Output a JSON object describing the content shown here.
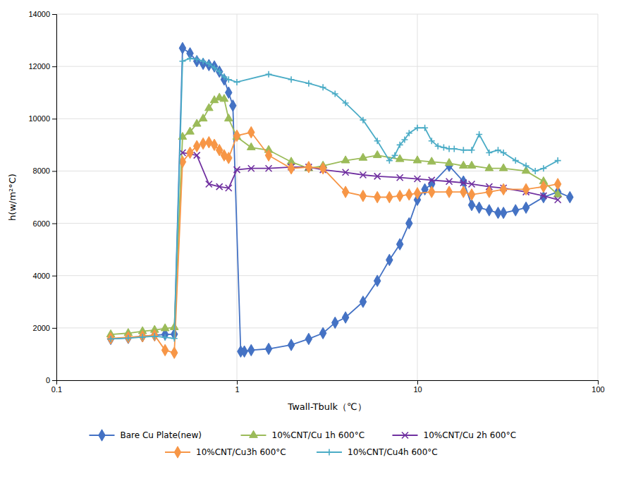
{
  "chart_data": {
    "type": "line",
    "xlabel": "Twall-Tbulk（℃）",
    "ylabel": "h(w/m²°C)",
    "log": "x",
    "grid": true,
    "legend": "bottom",
    "xlim": [
      0.1,
      100
    ],
    "xticks": [
      0.1,
      1,
      10,
      100
    ],
    "ylim": [
      0,
      14000
    ],
    "yticks": [
      0,
      2000,
      4000,
      6000,
      8000,
      10000,
      12000,
      14000
    ],
    "series": [
      {
        "name": "Bare Cu Plate(new)",
        "color": "#4472C4",
        "marker": "diamond",
        "x": [
          0.2,
          0.25,
          0.3,
          0.35,
          0.4,
          0.45,
          0.5,
          0.55,
          0.6,
          0.65,
          0.7,
          0.75,
          0.8,
          0.85,
          0.9,
          0.95,
          1.05,
          1.1,
          1.2,
          1.5,
          2.0,
          2.5,
          3.0,
          3.5,
          4.0,
          5.0,
          6.0,
          7.0,
          8.0,
          9.0,
          10.0,
          11.0,
          12.0,
          15.0,
          18.0,
          20.0,
          22.0,
          25.0,
          28.0,
          30.0,
          35.0,
          40.0,
          50.0,
          60.0,
          70.0
        ],
        "values": [
          1580,
          1620,
          1680,
          1720,
          1750,
          1760,
          12700,
          12500,
          12200,
          12100,
          12050,
          12000,
          11800,
          11500,
          11000,
          10500,
          1100,
          1100,
          1150,
          1200,
          1350,
          1580,
          1800,
          2200,
          2400,
          3000,
          3800,
          4600,
          5200,
          6000,
          6900,
          7300,
          7500,
          8200,
          7600,
          6700,
          6600,
          6500,
          6400,
          6400,
          6500,
          6600,
          7000,
          7200,
          7000
        ]
      },
      {
        "name": "10%CNT/Cu 1h 600°C",
        "color": "#9BBB59",
        "marker": "triangle",
        "x": [
          0.2,
          0.25,
          0.3,
          0.35,
          0.4,
          0.45,
          0.5,
          0.55,
          0.6,
          0.65,
          0.7,
          0.75,
          0.8,
          0.85,
          0.9,
          1.0,
          1.2,
          1.5,
          2.0,
          2.5,
          3.0,
          4.0,
          5.0,
          6.0,
          8.0,
          10.0,
          12.0,
          15.0,
          18.0,
          20.0,
          25.0,
          30.0,
          40.0,
          50.0,
          60.0
        ],
        "values": [
          1750,
          1800,
          1870,
          1920,
          1980,
          2020,
          9300,
          9500,
          9800,
          10000,
          10400,
          10700,
          10800,
          10750,
          10000,
          9300,
          8900,
          8800,
          8350,
          8100,
          8200,
          8400,
          8500,
          8600,
          8450,
          8400,
          8350,
          8300,
          8200,
          8200,
          8100,
          8100,
          8000,
          7600,
          7100
        ]
      },
      {
        "name": "10%CNT/Cu 2h 600°C",
        "color": "#7030A0",
        "marker": "x",
        "x": [
          0.5,
          0.6,
          0.7,
          0.8,
          0.9,
          1.0,
          1.2,
          1.5,
          2.0,
          2.5,
          3.0,
          4.0,
          5.0,
          6.0,
          8.0,
          10.0,
          12.0,
          15.0,
          18.0,
          20.0,
          25.0,
          30.0,
          40.0,
          50.0,
          60.0
        ],
        "values": [
          8700,
          8600,
          7500,
          7400,
          7350,
          8050,
          8100,
          8100,
          8150,
          8150,
          8050,
          7950,
          7850,
          7800,
          7750,
          7700,
          7650,
          7600,
          7550,
          7500,
          7400,
          7350,
          7200,
          7050,
          6900
        ]
      },
      {
        "name": "10%CNT/Cu3h 600°C",
        "color": "#F79646",
        "marker": "diamond",
        "x": [
          0.2,
          0.25,
          0.3,
          0.35,
          0.4,
          0.45,
          0.5,
          0.55,
          0.6,
          0.65,
          0.7,
          0.75,
          0.8,
          0.85,
          0.9,
          1.0,
          1.2,
          1.5,
          2.0,
          2.5,
          3.0,
          4.0,
          5.0,
          6.0,
          7.0,
          8.0,
          9.0,
          10.0,
          12.0,
          15.0,
          18.0,
          20.0,
          25.0,
          30.0,
          40.0,
          50.0,
          60.0
        ],
        "values": [
          1600,
          1640,
          1680,
          1720,
          1150,
          1050,
          8350,
          8700,
          8950,
          9050,
          9100,
          9000,
          8800,
          8600,
          8500,
          9350,
          9480,
          8600,
          8100,
          8150,
          8100,
          7200,
          7050,
          7000,
          7000,
          7050,
          7100,
          7150,
          7200,
          7200,
          7200,
          7100,
          7200,
          7300,
          7300,
          7400,
          7500
        ]
      },
      {
        "name": "10%CNT/Cu4h 600°C",
        "color": "#4BACC6",
        "marker": "plus",
        "x": [
          0.2,
          0.25,
          0.3,
          0.35,
          0.4,
          0.45,
          0.5,
          0.55,
          0.6,
          0.65,
          0.7,
          0.75,
          0.8,
          0.85,
          0.9,
          1.0,
          1.5,
          2.0,
          2.5,
          3.0,
          3.5,
          4.0,
          5.0,
          6.0,
          7.0,
          7.5,
          8.0,
          8.5,
          9.0,
          10.0,
          11.0,
          12.0,
          13.0,
          14.0,
          15.0,
          16.0,
          18.0,
          20.0,
          22.0,
          25.0,
          28.0,
          30.0,
          35.0,
          40.0,
          45.0,
          50.0,
          60.0
        ],
        "values": [
          1580,
          1610,
          1650,
          1680,
          1640,
          1600,
          12200,
          12300,
          12280,
          12200,
          12100,
          11950,
          11800,
          11600,
          11500,
          11400,
          11700,
          11500,
          11350,
          11200,
          10950,
          10600,
          9950,
          9150,
          8400,
          8600,
          9000,
          9200,
          9450,
          9650,
          9650,
          9150,
          8950,
          8900,
          8850,
          8850,
          8800,
          8800,
          9400,
          8700,
          8800,
          8700,
          8400,
          8200,
          8000,
          8100,
          8400
        ]
      }
    ]
  }
}
